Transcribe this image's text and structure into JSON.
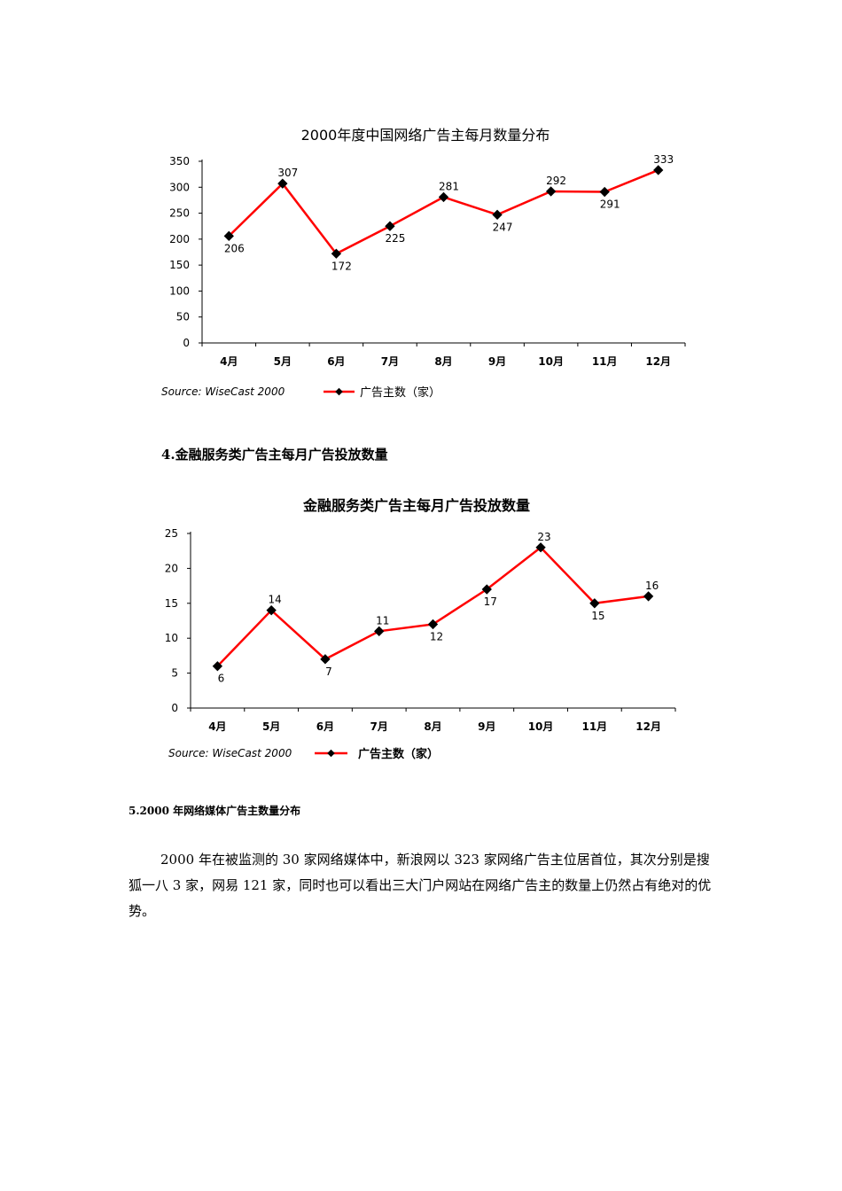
{
  "chart_data": [
    {
      "type": "line",
      "title": "2000年度中国网络广告主每月数量分布",
      "categories": [
        "4月",
        "5月",
        "6月",
        "7月",
        "8月",
        "9月",
        "10月",
        "11月",
        "12月"
      ],
      "series": [
        {
          "name": "广告主数（家）",
          "values": [
            206,
            307,
            172,
            225,
            281,
            247,
            292,
            291,
            333
          ],
          "color": "#ff0000"
        }
      ],
      "yticks": [
        0,
        50,
        100,
        150,
        200,
        250,
        300,
        350
      ],
      "ylim": [
        0,
        350
      ],
      "source": "Source: WiseCast 2000",
      "label_pos": [
        "below",
        "above",
        "below",
        "below",
        "above",
        "below",
        "above",
        "below",
        "above"
      ]
    },
    {
      "type": "line",
      "title": "金融服务类广告主每月广告投放数量",
      "categories": [
        "4月",
        "5月",
        "6月",
        "7月",
        "8月",
        "9月",
        "10月",
        "11月",
        "12月"
      ],
      "series": [
        {
          "name": "广告主数（家）",
          "values": [
            6,
            14,
            7,
            11,
            12,
            17,
            23,
            15,
            16
          ],
          "color": "#ff0000"
        }
      ],
      "yticks": [
        0,
        5,
        10,
        15,
        20,
        25
      ],
      "ylim": [
        0,
        25
      ],
      "source": "Source: WiseCast 2000",
      "label_pos": [
        "below",
        "above",
        "below",
        "above",
        "below",
        "below",
        "above",
        "below",
        "above"
      ]
    }
  ],
  "headings": {
    "section4": "4.金融服务类广告主每月广告投放数量",
    "section5": "5.2000 年网络媒体广告主数量分布"
  },
  "paragraph": "2000 年在被监测的 30 家网络媒体中，新浪网以 323 家网络广告主位居首位，其次分别是搜狐一八 3 家，网易 121 家，同时也可以看出三大门户网站在网络广告主的数量上仍然占有绝对的优势。"
}
